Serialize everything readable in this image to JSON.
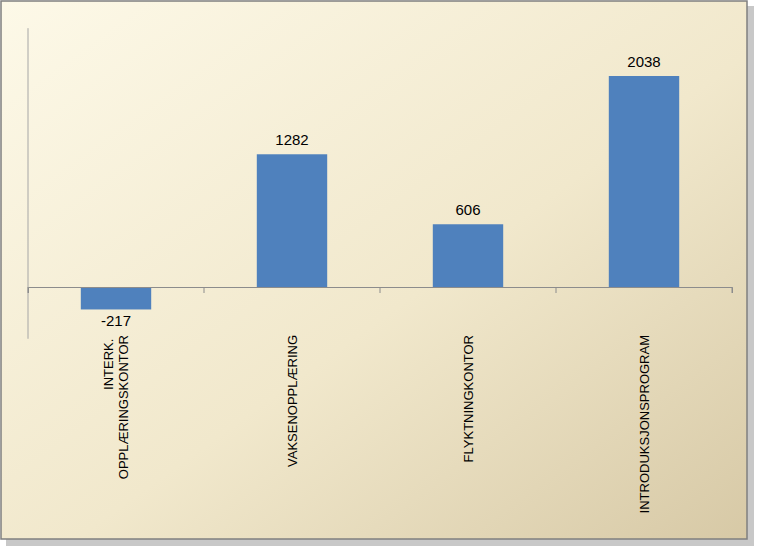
{
  "chart_data": {
    "type": "bar",
    "categories": [
      "INTERK. OPPLÆRINGSKONTOR",
      "VAKSENOPPLÆRING",
      "FLYKTNINGKONTOR",
      "INTRODUKSJONSPROGRAM"
    ],
    "values": [
      -217,
      1282,
      606,
      2038
    ],
    "color": "#4f81bd",
    "ylim": [
      -500,
      2500
    ],
    "grid": false,
    "data_labels": true,
    "tick_labels": "x"
  }
}
